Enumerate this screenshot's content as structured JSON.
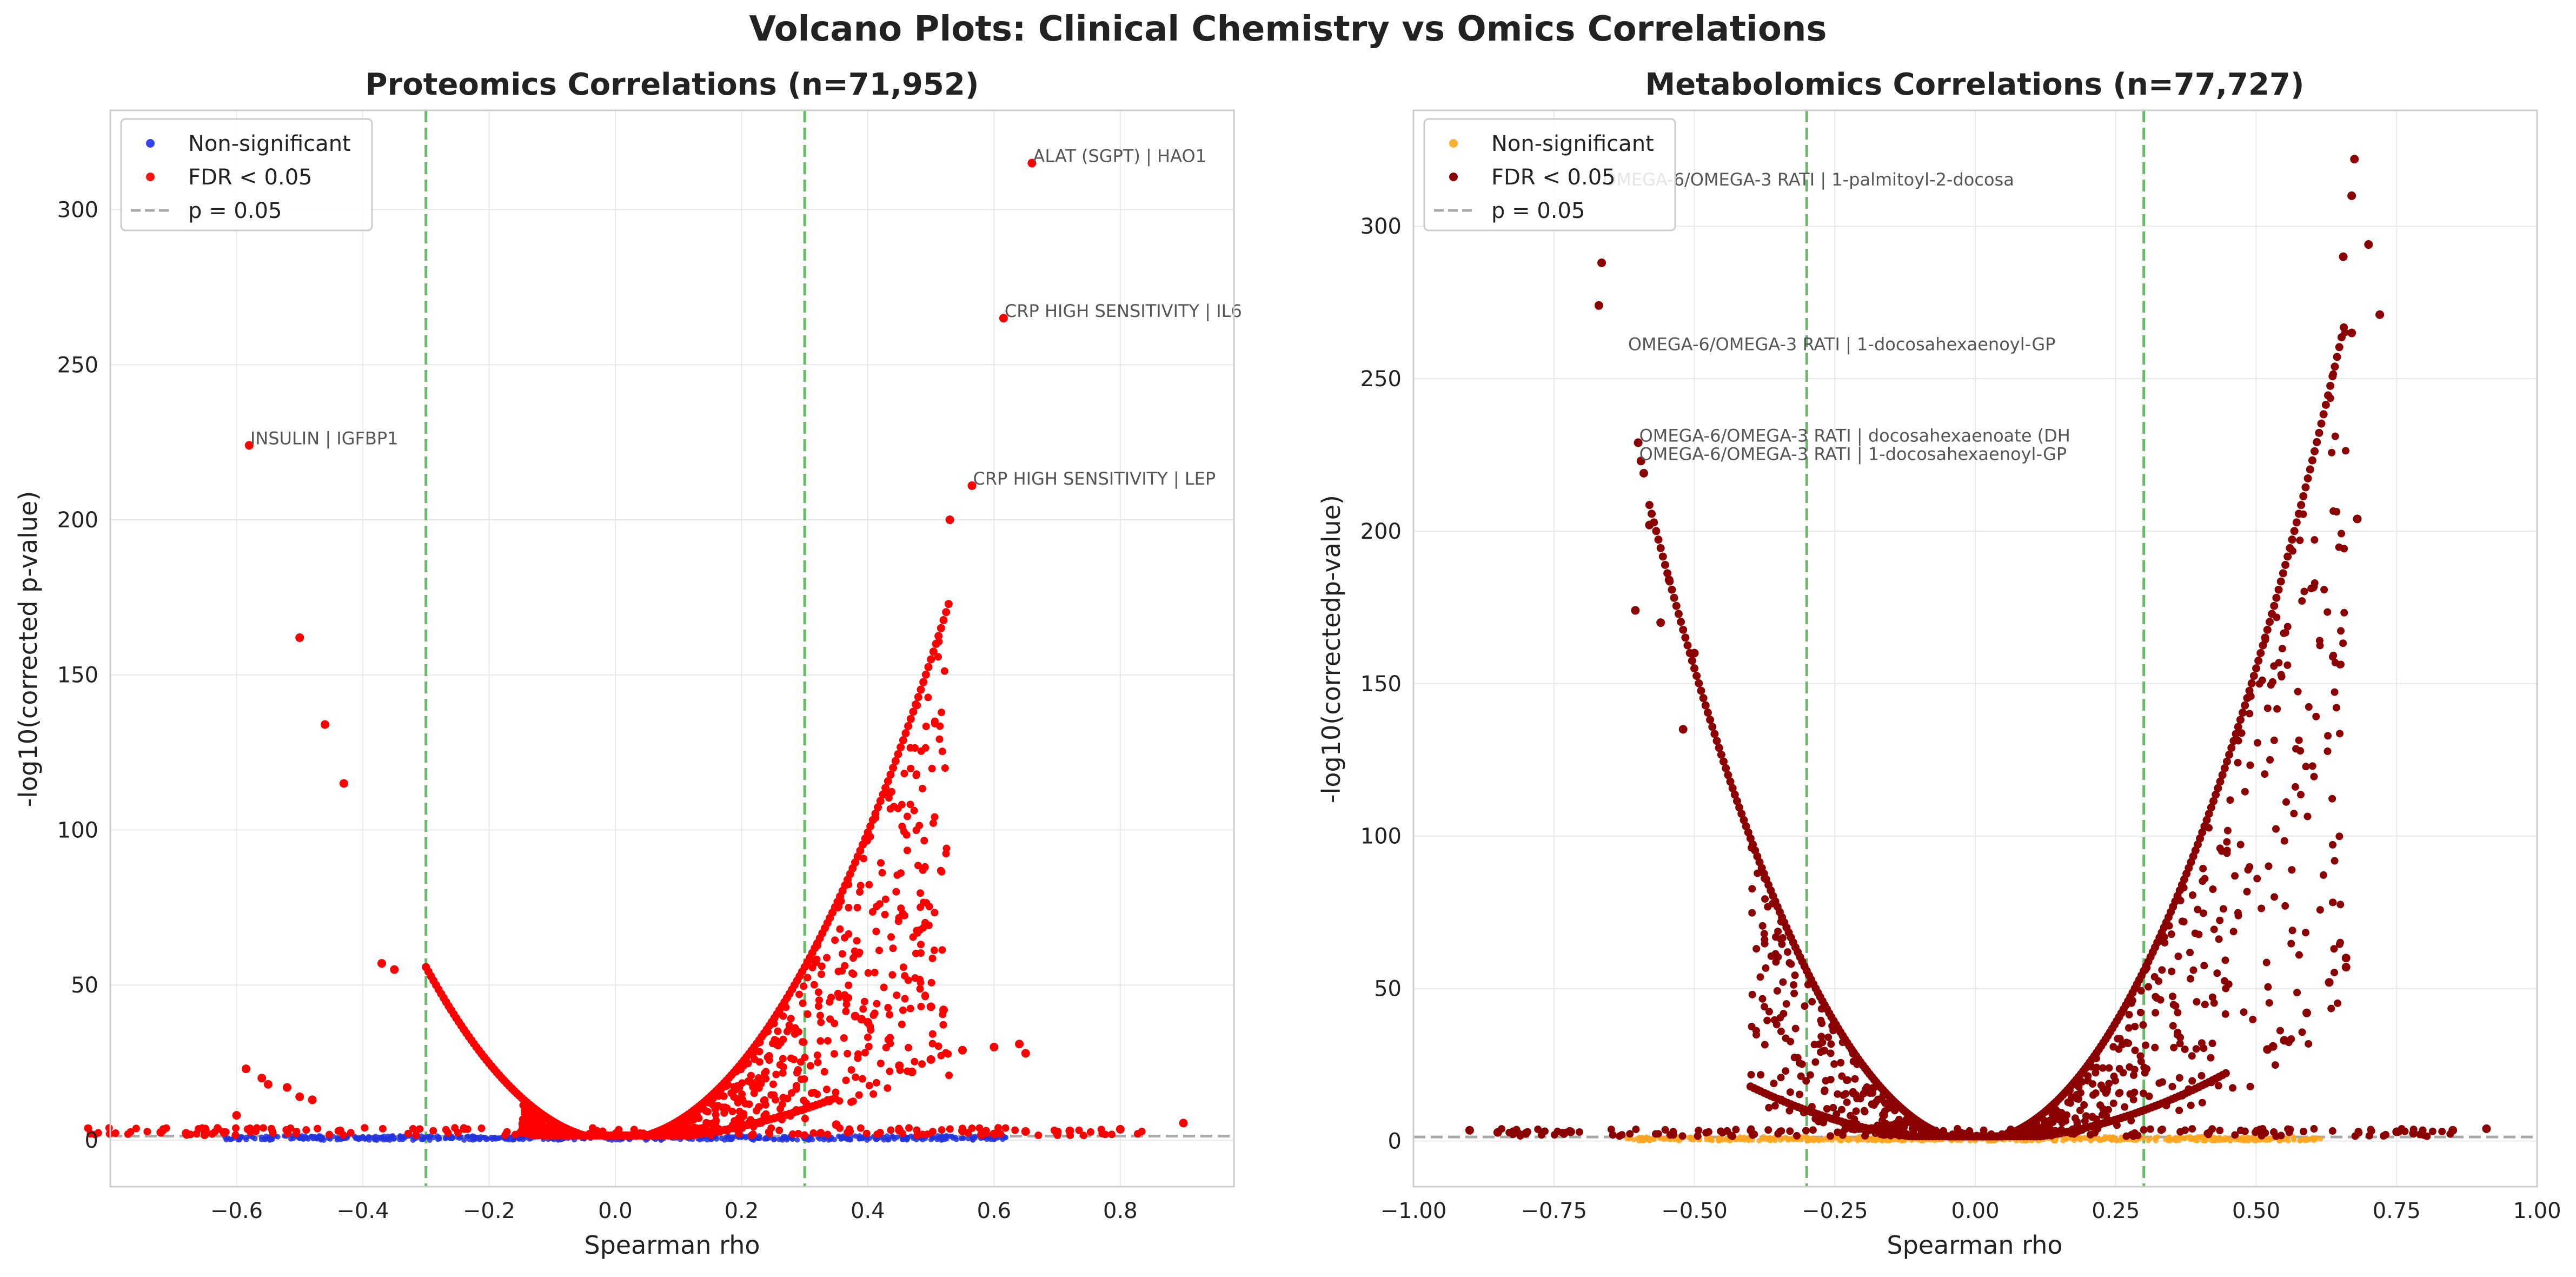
{
  "figure": {
    "suptitle": "Volcano Plots: Clinical Chemistry vs Omics Correlations"
  },
  "chart_data": [
    {
      "type": "scatter",
      "panel": "left",
      "title": "Proteomics Correlations (n=71,952)",
      "xlabel": "Spearman rho",
      "ylabel": "-log10(corrected p-value)",
      "xlim": [
        -0.8,
        0.98
      ],
      "ylim": [
        -15,
        332
      ],
      "xticks": [
        -0.6,
        -0.4,
        -0.2,
        0.0,
        0.2,
        0.4,
        0.6,
        0.8
      ],
      "xtick_labels": [
        "−0.6",
        "−0.4",
        "−0.2",
        "0.0",
        "0.2",
        "0.4",
        "0.6",
        "0.8"
      ],
      "yticks": [
        0,
        50,
        100,
        150,
        200,
        250,
        300
      ],
      "ytick_labels": [
        "0",
        "50",
        "100",
        "150",
        "200",
        "250",
        "300"
      ],
      "grid": true,
      "legend_position": "top-left",
      "vlines": [
        -0.3,
        0.3
      ],
      "hline": 1.3,
      "colors": {
        "nonsig": "#2233dd",
        "sig": "#ff0000",
        "vline": "#66bb66",
        "hline": "#aaaaaa"
      },
      "legend": [
        {
          "label": "Non-significant",
          "kind": "marker",
          "color": "#3344ee"
        },
        {
          "label": "FDR < 0.05",
          "kind": "marker",
          "color": "#ff1111"
        },
        {
          "label": "p = 0.05",
          "kind": "line",
          "color": "#aaaaaa"
        }
      ],
      "band": {
        "k": 620,
        "top_xmin": -0.3,
        "top_xmax": 0.53,
        "bottom_xmin": -0.15,
        "bottom_xmax": 0.35
      },
      "points": [
        [
          -0.58,
          224
        ],
        [
          -0.5,
          162
        ],
        [
          -0.46,
          134
        ],
        [
          -0.43,
          115
        ],
        [
          -0.37,
          57
        ],
        [
          -0.35,
          55
        ],
        [
          -0.585,
          23
        ],
        [
          -0.56,
          20
        ],
        [
          -0.55,
          18
        ],
        [
          -0.52,
          17
        ],
        [
          -0.5,
          14
        ],
        [
          -0.48,
          13
        ],
        [
          -0.6,
          8
        ],
        [
          -0.72,
          2.5
        ],
        [
          -0.68,
          2.2
        ],
        [
          -0.65,
          2
        ],
        [
          -0.62,
          2.5
        ],
        [
          0.53,
          200
        ],
        [
          0.565,
          211
        ],
        [
          0.615,
          265
        ],
        [
          0.66,
          315
        ],
        [
          0.38,
          40
        ],
        [
          0.39,
          39
        ],
        [
          0.4,
          38
        ],
        [
          0.5,
          43
        ],
        [
          0.52,
          42
        ],
        [
          0.45,
          24
        ],
        [
          0.47,
          22
        ],
        [
          0.5,
          26
        ],
        [
          0.55,
          29
        ],
        [
          0.6,
          30
        ],
        [
          0.64,
          31
        ],
        [
          0.65,
          28
        ],
        [
          0.35,
          5
        ],
        [
          0.45,
          3.2
        ],
        [
          0.55,
          3
        ],
        [
          0.65,
          2.8
        ],
        [
          0.72,
          3
        ],
        [
          0.8,
          3.5
        ],
        [
          0.9,
          5.5
        ],
        [
          0.6,
          2
        ],
        [
          0.7,
          2.2
        ],
        [
          0.58,
          1.8
        ]
      ],
      "annotations": [
        {
          "text": "ALAT (SGPT) | HAO1",
          "x": 0.66,
          "y": 315
        },
        {
          "text": "CRP HIGH SENSITIVITY | IL6",
          "x": 0.615,
          "y": 265
        },
        {
          "text": "INSULIN | IGFBP1",
          "x": -0.58,
          "y": 224
        },
        {
          "text": "CRP HIGH SENSITIVITY | LEP",
          "x": 0.565,
          "y": 211
        }
      ]
    },
    {
      "type": "scatter",
      "panel": "right",
      "title": "Metabolomics Correlations (n=77,727)",
      "xlabel": "Spearman rho",
      "ylabel": "-log10(correctedp-value)",
      "xlim": [
        -1.0,
        1.0
      ],
      "ylim": [
        -15,
        338
      ],
      "xticks": [
        -1.0,
        -0.75,
        -0.5,
        -0.25,
        0.0,
        0.25,
        0.5,
        0.75,
        1.0
      ],
      "xtick_labels": [
        "−1.00",
        "−0.75",
        "−0.50",
        "−0.25",
        "0.00",
        "0.25",
        "0.50",
        "0.75",
        "1.00"
      ],
      "yticks": [
        0,
        50,
        100,
        150,
        200,
        250,
        300
      ],
      "ytick_labels": [
        "0",
        "50",
        "100",
        "150",
        "200",
        "250",
        "300"
      ],
      "grid": true,
      "legend_position": "top-left",
      "vlines": [
        -0.3,
        0.3
      ],
      "hline": 1.3,
      "colors": {
        "nonsig": "#ffa520",
        "sig": "#8b0000",
        "vline": "#66bb66",
        "hline": "#aaaaaa"
      },
      "legend": [
        {
          "label": "Non-significant",
          "kind": "marker",
          "color": "#ffb030"
        },
        {
          "label": "FDR < 0.05",
          "kind": "marker",
          "color": "#8b0000"
        },
        {
          "label": "p = 0.05",
          "kind": "line",
          "color": "#aaaaaa"
        }
      ],
      "band": {
        "k": 620,
        "top_xmin": -0.58,
        "top_xmax": 0.66,
        "bottom_xmin": -0.4,
        "bottom_xmax": 0.45
      },
      "points": [
        [
          -0.67,
          274
        ],
        [
          -0.665,
          288
        ],
        [
          -0.6,
          229
        ],
        [
          -0.595,
          223
        ],
        [
          -0.59,
          219
        ],
        [
          -0.58,
          202
        ],
        [
          -0.605,
          174
        ],
        [
          -0.56,
          170
        ],
        [
          -0.545,
          184
        ],
        [
          -0.5,
          160
        ],
        [
          -0.52,
          135
        ],
        [
          -0.72,
          3
        ],
        [
          -0.8,
          2.5
        ],
        [
          -0.9,
          3.5
        ],
        [
          -0.85,
          2.8
        ],
        [
          0.655,
          290
        ],
        [
          0.67,
          310
        ],
        [
          0.675,
          322
        ],
        [
          0.7,
          294
        ],
        [
          0.72,
          271
        ],
        [
          0.67,
          265
        ],
        [
          0.68,
          204
        ],
        [
          0.63,
          52
        ],
        [
          0.66,
          60
        ],
        [
          0.66,
          57
        ],
        [
          0.59,
          42
        ],
        [
          0.55,
          33
        ],
        [
          0.52,
          30
        ],
        [
          0.53,
          31
        ],
        [
          0.91,
          4
        ],
        [
          0.85,
          3.5
        ],
        [
          0.75,
          3
        ],
        [
          0.78,
          2.5
        ]
      ],
      "annotations": [
        {
          "text": "OMEGA-6/OMEGA-3 RATI | 1-palmitoyl-2-docosa",
          "x": -0.665,
          "y": 313
        },
        {
          "text": "OMEGA-6/OMEGA-3 RATI | 1-docosahexaenoyl-GP",
          "x": -0.62,
          "y": 259
        },
        {
          "text": "OMEGA-6/OMEGA-3 RATI | docosahexaenoate (DH",
          "x": -0.6,
          "y": 229
        },
        {
          "text": "OMEGA-6/OMEGA-3 RATI | 1-docosahexaenoyl-GP",
          "x": -0.6,
          "y": 223
        }
      ]
    }
  ]
}
